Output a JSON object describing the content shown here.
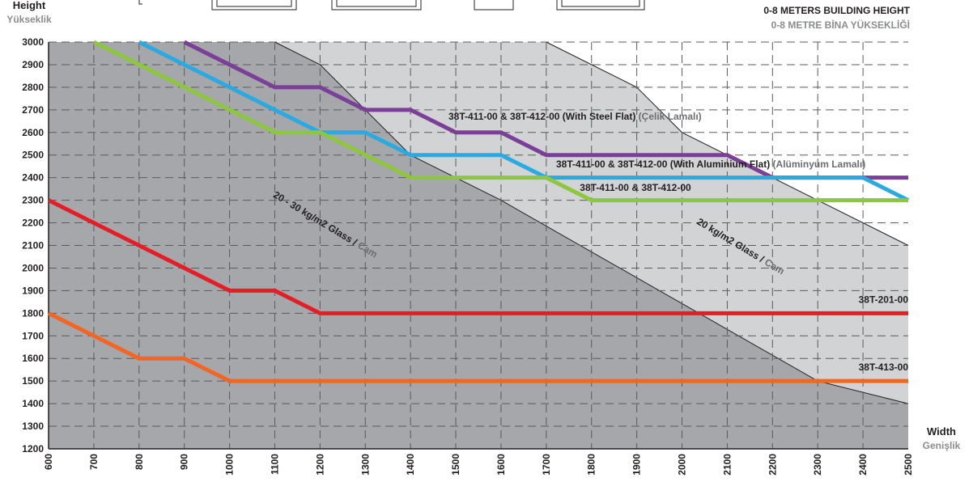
{
  "header": {
    "y_title": "Height",
    "y_title_tr": "Yükseklik",
    "x_title": "Width",
    "x_title_tr": "Genişlik",
    "building_height": "0-8 METERS BUILDING HEIGHT",
    "building_height_tr": "0-8 METRE BİNA YÜKSEKLİĞİ"
  },
  "chart_data": {
    "type": "line",
    "xlabel": "Width",
    "ylabel": "Height",
    "xlim": [
      600,
      2500
    ],
    "ylim": [
      1200,
      3000
    ],
    "x_ticks": [
      "600",
      "700",
      "800",
      "900",
      "1000",
      "1100",
      "1200",
      "1300",
      "1400",
      "1500",
      "1600",
      "1700",
      "1800",
      "1900",
      "2000",
      "2100",
      "2200",
      "2300",
      "2400",
      "2500"
    ],
    "y_ticks": [
      "1200",
      "1300",
      "1400",
      "1500",
      "1600",
      "1700",
      "1800",
      "1900",
      "2000",
      "2100",
      "2200",
      "2300",
      "2400",
      "2500",
      "2600",
      "2700",
      "2800",
      "2900",
      "3000"
    ],
    "grid": true,
    "regions": [
      {
        "name": "20 kg/m2 Glass",
        "label_main": "20 kg/m2 Glass / ",
        "label_tr": "Cam",
        "color": "#d2d3d5",
        "x": [
          1100,
          1200,
          1400,
          1600,
          1700,
          1900,
          2000,
          2500
        ],
        "y": [
          3000,
          2900,
          2500,
          2300,
          3000,
          2800,
          2600,
          2100
        ]
      },
      {
        "name": "20 - 30 kg/m2 Glass",
        "label_main": "20 - 30 kg/m2 Glass / ",
        "label_tr": "Cam",
        "color": "#a6a7aa",
        "x": [
          600,
          1100,
          1200,
          1400,
          1600,
          2300,
          2500
        ],
        "y": [
          3000,
          3000,
          2900,
          2500,
          2300,
          1500,
          1400
        ]
      }
    ],
    "series": [
      {
        "name": "38T-411-00 & 38T-412-00 (With Steel Flat)",
        "label_main": "38T-411-00 & 38T-412-00 (With Steel Flat)",
        "label_tr": "(Çelik Lamalı)",
        "color": "#7b3f98",
        "x": [
          900,
          1100,
          1200,
          1300,
          1400,
          1500,
          1600,
          1700,
          2100,
          2200,
          2500
        ],
        "y": [
          3000,
          2800,
          2800,
          2700,
          2700,
          2600,
          2600,
          2500,
          2500,
          2400,
          2400
        ]
      },
      {
        "name": "38T-411-00 & 38T-412-00 (With Aluminium Flat)",
        "label_main": "38T-411-00 & 38T-412-00 (With Aluminium Flat)",
        "label_tr": "(Alüminyum Lamalı)",
        "color": "#29aae1",
        "x": [
          800,
          1200,
          1300,
          1400,
          1600,
          1700,
          2400,
          2500
        ],
        "y": [
          3000,
          2600,
          2600,
          2500,
          2500,
          2400,
          2400,
          2300
        ]
      },
      {
        "name": "38T-411-00 & 38T-412-00",
        "label_main": "38T-411-00 & 38T-412-00",
        "label_tr": "",
        "color": "#8dc63f",
        "x": [
          700,
          1100,
          1200,
          1400,
          1700,
          1800,
          2500
        ],
        "y": [
          3000,
          2600,
          2600,
          2400,
          2400,
          2300,
          2300
        ]
      },
      {
        "name": "38T-201-00",
        "label_main": "38T-201-00",
        "label_tr": "",
        "color": "#e31e26",
        "x": [
          600,
          1000,
          1100,
          1200,
          2500
        ],
        "y": [
          2300,
          1900,
          1900,
          1800,
          1800
        ]
      },
      {
        "name": "38T-413-00",
        "label_main": "38T-413-00",
        "label_tr": "",
        "color": "#f26522",
        "x": [
          600,
          800,
          900,
          1000,
          2500
        ],
        "y": [
          1800,
          1600,
          1600,
          1500,
          1500
        ]
      }
    ]
  }
}
